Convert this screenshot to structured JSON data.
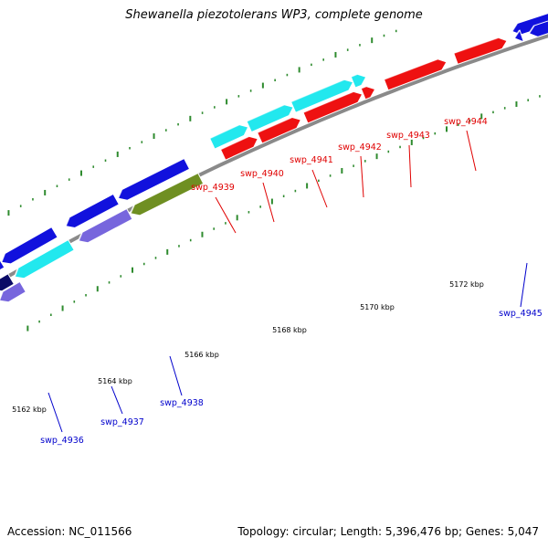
{
  "title": "Shewanella piezotolerans WP3, complete genome",
  "footer": {
    "accession": "Accession: NC_011566",
    "summary": "Topology: circular; Length: 5,396,476 bp; Genes: 5,047"
  },
  "colors": {
    "backbone": "#8a8a8a",
    "tick_dots": "#2e8b2e",
    "plus_label": "#e00000",
    "minus_label": "#0000cc",
    "gene_red": "#ee1111",
    "gene_cyan": "#22e8ee",
    "gene_blue": "#1111dd",
    "gene_purple": "#7766dd",
    "gene_olive": "#6f8f22",
    "gene_navy": "#0a0a66"
  },
  "ruler": {
    "unit": "kbp",
    "labels": [
      {
        "pos": 5162,
        "text": "5162 kbp"
      },
      {
        "pos": 5164,
        "text": "5164 kbp"
      },
      {
        "pos": 5166,
        "text": "5166 kbp"
      },
      {
        "pos": 5168,
        "text": "5168 kbp"
      },
      {
        "pos": 5170,
        "text": "5170 kbp"
      },
      {
        "pos": 5172,
        "text": "5172 kbp"
      }
    ]
  },
  "gene_labels": [
    {
      "name": "swp_4936",
      "strand": "minus"
    },
    {
      "name": "swp_4937",
      "strand": "minus"
    },
    {
      "name": "swp_4938",
      "strand": "minus"
    },
    {
      "name": "swp_4939",
      "strand": "plus"
    },
    {
      "name": "swp_4940",
      "strand": "plus"
    },
    {
      "name": "swp_4941",
      "strand": "plus"
    },
    {
      "name": "swp_4942",
      "strand": "plus"
    },
    {
      "name": "swp_4943",
      "strand": "plus"
    },
    {
      "name": "swp_4944",
      "strand": "plus"
    },
    {
      "name": "swp_4945",
      "strand": "minus"
    }
  ],
  "features": [
    {
      "id": "f1",
      "kind": "gene",
      "strand": "minus",
      "color": "gene_blue"
    },
    {
      "id": "f2",
      "kind": "gene",
      "strand": "minus",
      "color": "gene_blue"
    },
    {
      "id": "f3",
      "kind": "gene",
      "strand": "minus",
      "color": "gene_blue"
    },
    {
      "id": "f4",
      "kind": "gene",
      "strand": "minus",
      "color": "gene_blue"
    },
    {
      "id": "f5",
      "kind": "gene",
      "strand": "minus",
      "color": "gene_blue"
    },
    {
      "id": "f6",
      "kind": "cds",
      "strand": "minus",
      "color": "gene_cyan"
    },
    {
      "id": "f7",
      "kind": "cds",
      "strand": "minus",
      "color": "gene_purple"
    },
    {
      "id": "f8",
      "kind": "cds",
      "strand": "minus",
      "color": "gene_olive"
    },
    {
      "id": "f9",
      "kind": "cds",
      "strand": "minus",
      "color": "gene_navy"
    },
    {
      "id": "f10",
      "kind": "cds",
      "strand": "minus",
      "color": "gene_purple"
    },
    {
      "id": "f11",
      "kind": "cds",
      "strand": "plus",
      "color": "gene_cyan"
    },
    {
      "id": "f12",
      "kind": "cds",
      "strand": "plus",
      "color": "gene_cyan"
    },
    {
      "id": "f13",
      "kind": "cds",
      "strand": "plus",
      "color": "gene_cyan"
    },
    {
      "id": "f14",
      "kind": "cds",
      "strand": "plus",
      "color": "gene_cyan"
    },
    {
      "id": "f15",
      "kind": "gene",
      "strand": "plus",
      "color": "gene_red"
    },
    {
      "id": "f16",
      "kind": "gene",
      "strand": "plus",
      "color": "gene_red"
    },
    {
      "id": "f17",
      "kind": "gene",
      "strand": "plus",
      "color": "gene_red"
    },
    {
      "id": "f18",
      "kind": "gene",
      "strand": "plus",
      "color": "gene_red"
    },
    {
      "id": "f19",
      "kind": "gene",
      "strand": "plus",
      "color": "gene_red"
    },
    {
      "id": "f20",
      "kind": "gene",
      "strand": "plus",
      "color": "gene_red"
    },
    {
      "id": "f21",
      "kind": "gene",
      "strand": "minus",
      "color": "gene_blue"
    },
    {
      "id": "f22",
      "kind": "gene",
      "strand": "minus",
      "color": "gene_blue"
    }
  ]
}
